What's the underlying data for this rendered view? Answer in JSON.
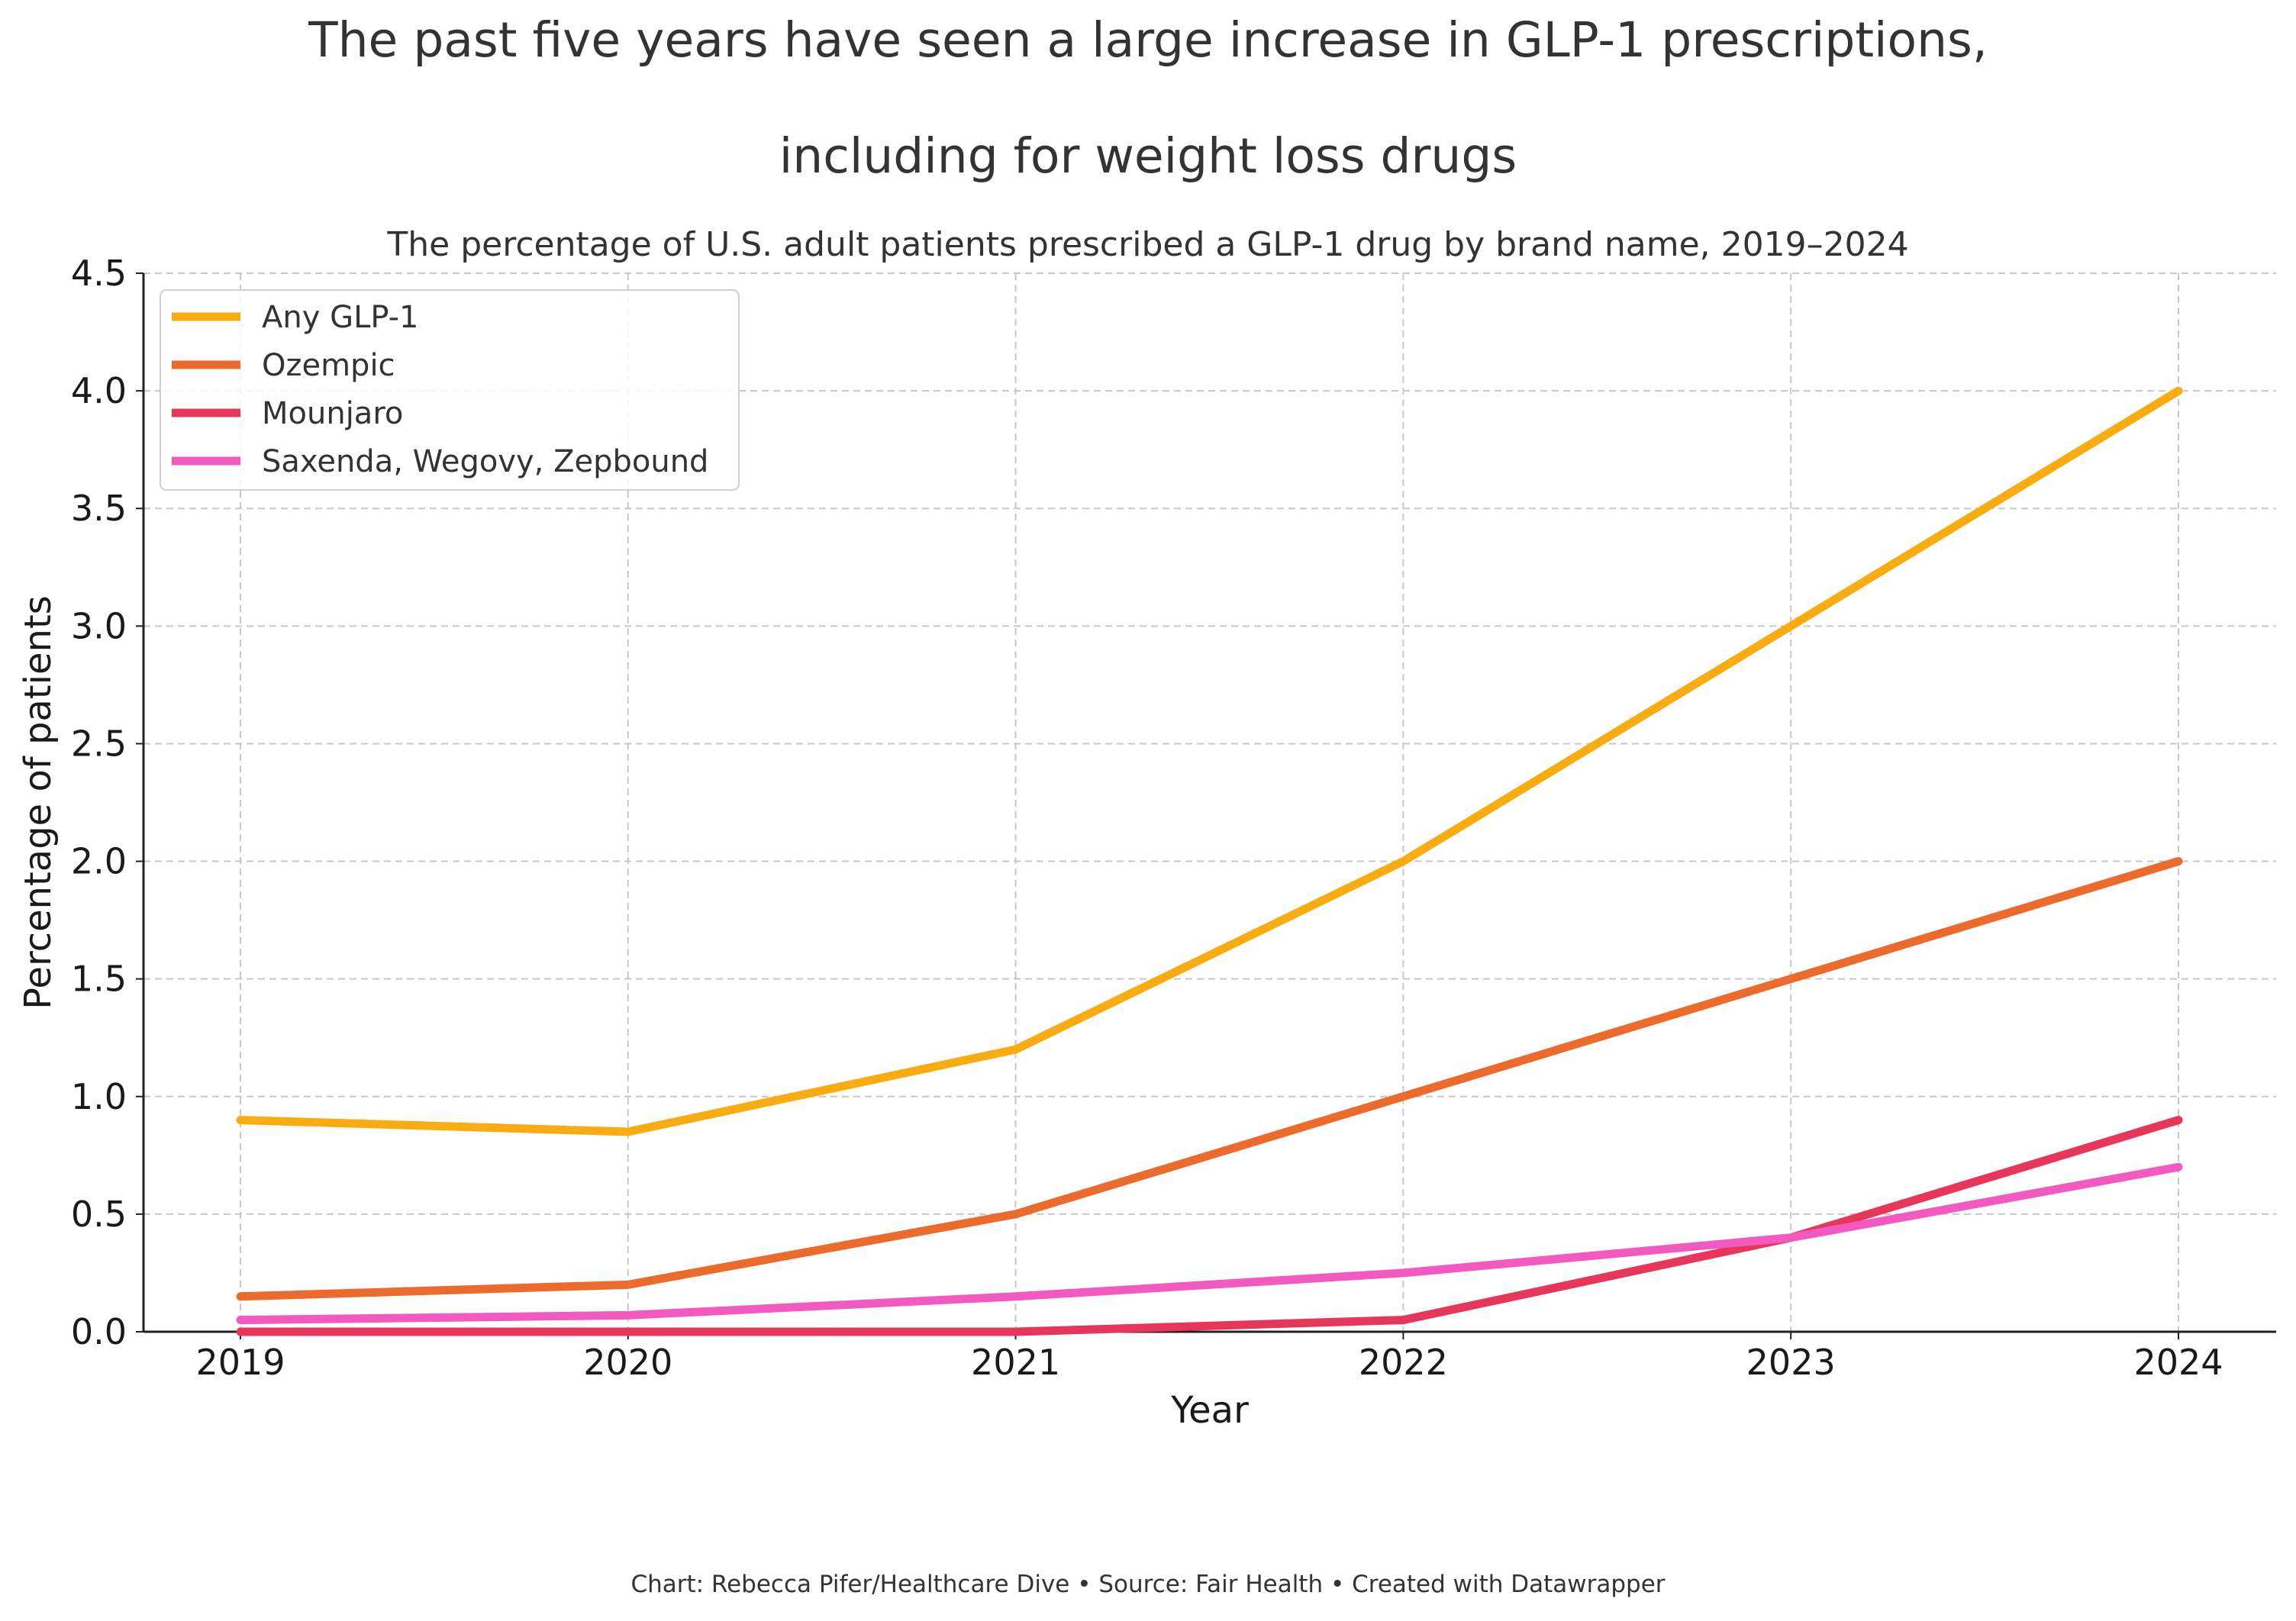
{
  "header": {
    "title_line1": "The past five years have seen a large increase in GLP-1 prescriptions,",
    "title_line2": "including for weight loss drugs",
    "subtitle": "The percentage of U.S. adult patients prescribed a GLP-1 drug by brand name, 2019–2024"
  },
  "footer": {
    "credit": "Chart: Rebecca Pifer/Healthcare Dive • Source: Fair Health • Created with Datawrapper"
  },
  "chart_data": {
    "type": "line",
    "title": "The past five years have seen a large increase in GLP-1 prescriptions, including for weight loss drugs",
    "subtitle": "The percentage of U.S. adult patients prescribed a GLP-1 drug by brand name, 2019–2024",
    "xlabel": "Year",
    "ylabel": "Percentage of patients",
    "x": [
      2019,
      2020,
      2021,
      2022,
      2023,
      2024
    ],
    "x_tick_labels": [
      "2019",
      "2020",
      "2021",
      "2022",
      "2023",
      "2024"
    ],
    "ylim": [
      0,
      4.5
    ],
    "y_ticks": [
      0,
      0.5,
      1,
      1.5,
      2,
      2.5,
      3,
      3.5,
      4,
      4.5
    ],
    "y_tick_labels": [
      "0.0",
      "0.5",
      "1.0",
      "1.5",
      "2.0",
      "2.5",
      "3.0",
      "3.5",
      "4.0",
      "4.5"
    ],
    "grid": true,
    "grid_style": "dashed",
    "legend_position": "top-left",
    "series": [
      {
        "name": "Any GLP-1",
        "color": "#F9AB12",
        "values": [
          0.9,
          0.85,
          1.2,
          2.0,
          3.0,
          4.0
        ]
      },
      {
        "name": "Ozempic",
        "color": "#EC6A2C",
        "values": [
          0.15,
          0.2,
          0.5,
          1.0,
          1.5,
          2.0
        ]
      },
      {
        "name": "Mounjaro",
        "color": "#E8355A",
        "values": [
          0.0,
          0.0,
          0.0,
          0.05,
          0.4,
          0.9
        ]
      },
      {
        "name": "Saxenda, Wegovy, Zepbound",
        "color": "#F25ABF",
        "values": [
          0.05,
          0.07,
          0.15,
          0.25,
          0.4,
          0.7
        ]
      }
    ]
  }
}
